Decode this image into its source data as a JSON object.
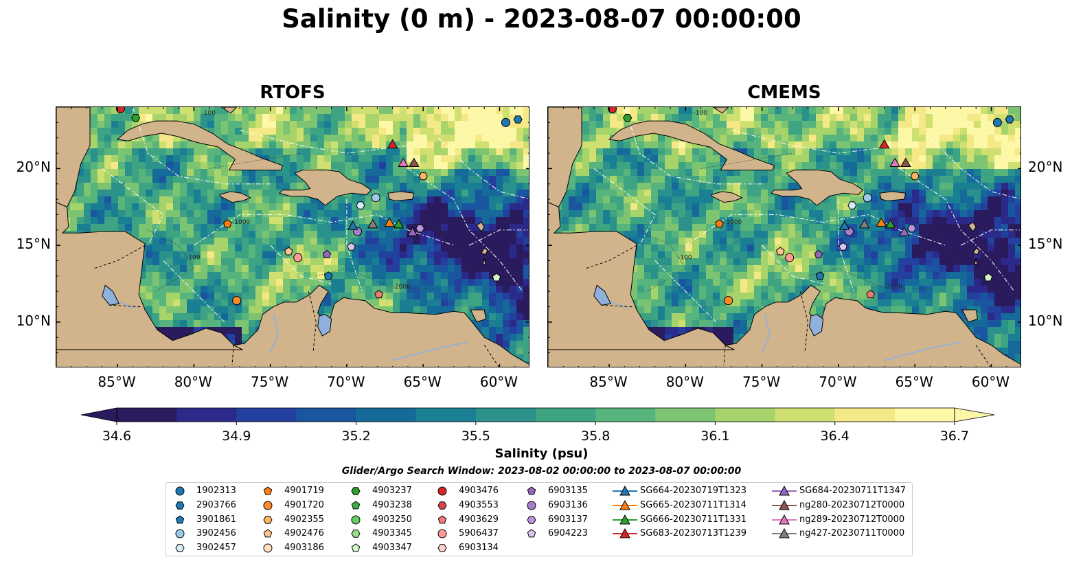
{
  "title": "Salinity (0 m) - 2023-08-07 00:00:00",
  "panels": [
    {
      "title": "RTOFS"
    },
    {
      "title": "CMEMS"
    }
  ],
  "lon_labels": [
    "85°W",
    "80°W",
    "75°W",
    "70°W",
    "65°W",
    "60°W"
  ],
  "lat_labels": [
    "20°N",
    "15°N",
    "10°N"
  ],
  "contour_labels": [
    "-100",
    "-1000",
    "-2000"
  ],
  "colorbar": {
    "label": "Salinity (psu)",
    "ticks": [
      "34.6",
      "34.9",
      "35.2",
      "35.5",
      "35.8",
      "36.1",
      "36.4",
      "36.7"
    ],
    "min": 34.6,
    "max": 36.7,
    "extend": "both",
    "colors": [
      "#2a1a5e",
      "#2b2a8a",
      "#23409e",
      "#1a56a0",
      "#156a9a",
      "#1b7f93",
      "#2a918b",
      "#3da383",
      "#56b47c",
      "#7dc472",
      "#a6d36a",
      "#cfdf70",
      "#f4e986",
      "#fdf7a8"
    ]
  },
  "search_window": "Glider/Argo Search Window: 2023-08-02 00:00:00 to 2023-08-07 00:00:00",
  "colors": {
    "land": "#d2b48c",
    "lakes": "#8fb1dc",
    "deep_ocean": "#2b1d6b",
    "grid_lines": "#ffffff"
  },
  "legend": [
    {
      "label": "1902313",
      "marker": "circle",
      "color": "#1f77b4"
    },
    {
      "label": "2903766",
      "marker": "hexagon",
      "color": "#1f77b4"
    },
    {
      "label": "3901861",
      "marker": "pentagon",
      "color": "#1f77b4"
    },
    {
      "label": "3902456",
      "marker": "circle",
      "color": "#9ecae9"
    },
    {
      "label": "3902457",
      "marker": "hexagon",
      "color": "#d6ebf8"
    },
    {
      "label": "4901719",
      "marker": "pentagon",
      "color": "#ff7f0e"
    },
    {
      "label": "4901720",
      "marker": "circle",
      "color": "#ff8c2a"
    },
    {
      "label": "4902355",
      "marker": "hexagon",
      "color": "#ffb366"
    },
    {
      "label": "4902476",
      "marker": "pentagon",
      "color": "#ffc48c"
    },
    {
      "label": "4903186",
      "marker": "circle",
      "color": "#ffe0c0"
    },
    {
      "label": "4903237",
      "marker": "hexagon",
      "color": "#2ca02c"
    },
    {
      "label": "4903238",
      "marker": "pentagon",
      "color": "#3cb043"
    },
    {
      "label": "4903250",
      "marker": "circle",
      "color": "#66cc66"
    },
    {
      "label": "4903345",
      "marker": "hexagon",
      "color": "#98df8a"
    },
    {
      "label": "4903347",
      "marker": "pentagon",
      "color": "#d4f5c8"
    },
    {
      "label": "4903476",
      "marker": "circle",
      "color": "#d62728"
    },
    {
      "label": "4903553",
      "marker": "hexagon",
      "color": "#e0444a"
    },
    {
      "label": "4903629",
      "marker": "pentagon",
      "color": "#f07a7a"
    },
    {
      "label": "5906437",
      "marker": "circle",
      "color": "#ff9896"
    },
    {
      "label": "6903134",
      "marker": "hexagon",
      "color": "#ffd0d0"
    },
    {
      "label": "6903135",
      "marker": "pentagon",
      "color": "#9467bd"
    },
    {
      "label": "6903136",
      "marker": "circle",
      "color": "#a57fcc"
    },
    {
      "label": "6903137",
      "marker": "hexagon",
      "color": "#b896dc"
    },
    {
      "label": "6904223",
      "marker": "pentagon",
      "color": "#d8c4f0"
    },
    {
      "label": "SG664-20230719T1323",
      "marker": "triangle",
      "color": "#1f77b4"
    },
    {
      "label": "SG665-20230711T1314",
      "marker": "triangle",
      "color": "#ff7f0e"
    },
    {
      "label": "SG666-20230711T1331",
      "marker": "triangle",
      "color": "#2ca02c"
    },
    {
      "label": "SG683-20230713T1239",
      "marker": "triangle",
      "color": "#d62728"
    },
    {
      "label": "SG684-20230711T1347",
      "marker": "triangle",
      "color": "#9467bd"
    },
    {
      "label": "ng280-20230712T0000",
      "marker": "triangle",
      "color": "#8c564b"
    },
    {
      "label": "ng289-20230712T0000",
      "marker": "triangle",
      "color": "#e377c2"
    },
    {
      "label": "ng427-20230711T0000",
      "marker": "triangle",
      "color": "#7f7f7f"
    }
  ],
  "observations": [
    {
      "id": "1902313",
      "lon": -59.6,
      "lat": 23.0
    },
    {
      "id": "2903766",
      "lon": -58.8,
      "lat": 23.2
    },
    {
      "id": "4903237",
      "lon": -83.8,
      "lat": 23.3
    },
    {
      "id": "4903476",
      "lon": -84.8,
      "lat": 23.9
    },
    {
      "id": "4901719",
      "lon": -77.8,
      "lat": 16.4
    },
    {
      "id": "4902355",
      "lon": -65.0,
      "lat": 19.5
    },
    {
      "id": "3902456",
      "lon": -68.1,
      "lat": 18.1
    },
    {
      "id": "3902457",
      "lon": -69.1,
      "lat": 17.6
    },
    {
      "id": "6903136",
      "lon": -69.3,
      "lat": 15.9
    },
    {
      "id": "6903137",
      "lon": -65.2,
      "lat": 16.1
    },
    {
      "id": "4902476",
      "lon": -73.8,
      "lat": 14.6
    },
    {
      "id": "5906437",
      "lon": -73.2,
      "lat": 14.2
    },
    {
      "id": "6903135",
      "lon": -71.3,
      "lat": 14.4
    },
    {
      "id": "6904223",
      "lon": -69.7,
      "lat": 14.9
    },
    {
      "id": "3901861",
      "lon": -71.2,
      "lat": 13.0
    },
    {
      "id": "4901720",
      "lon": -77.2,
      "lat": 11.4
    },
    {
      "id": "4903629",
      "lon": -67.9,
      "lat": 11.8
    },
    {
      "id": "4903347",
      "lon": -60.2,
      "lat": 12.9
    }
  ],
  "glider_tracks": [
    {
      "id": "SG664-20230719T1323",
      "lon": -69.6,
      "lat": 16.3
    },
    {
      "id": "ng427-20230711T0000",
      "lon": -68.3,
      "lat": 16.4
    },
    {
      "id": "SG665-20230711T1314",
      "lon": -67.2,
      "lat": 16.5
    },
    {
      "id": "SG666-20230711T1331",
      "lon": -66.6,
      "lat": 16.4
    },
    {
      "id": "SG684-20230711T1347",
      "lon": -65.7,
      "lat": 15.9
    },
    {
      "id": "SG683-20230713T1239",
      "lon": -67.0,
      "lat": 21.6
    },
    {
      "id": "ng289-20230712T0000",
      "lon": -66.3,
      "lat": 20.4
    },
    {
      "id": "ng280-20230712T0000",
      "lon": -65.6,
      "lat": 20.4
    }
  ]
}
